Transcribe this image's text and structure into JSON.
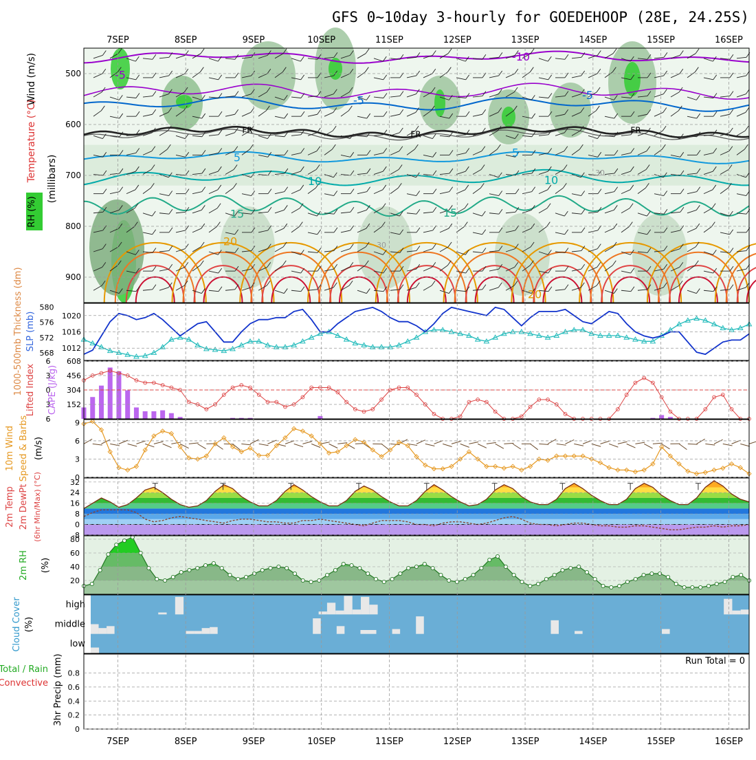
{
  "title": "GFS 0~10day 3-hourly for GOEDEHOOP (28E, 24.25S)",
  "date_labels": [
    "7SEP",
    "8SEP",
    "9SEP",
    "10SEP",
    "11SEP",
    "12SEP",
    "13SEP",
    "14SEP",
    "15SEP",
    "16SEP"
  ],
  "colors": {
    "rh_green": "#33cc33",
    "temp_purple": "#9900cc",
    "temp_blue": "#0066cc",
    "freeze_black": "#222222",
    "temp_teal": "#00aaaa",
    "temp_orange": "#e69900",
    "temp_red": "#dd2222",
    "slp_blue": "#1133cc",
    "thickness_cyan": "#22bbbb",
    "cape_purple": "#bb66ee",
    "li_red": "#dd4444",
    "wind_orange": "#e69922",
    "cloud_blue": "#6aaed6"
  },
  "panel_labels": {
    "upper_wind": "Wind (m/s)",
    "upper_temp": "Temperature (°C)",
    "upper_rh": "RH (%)",
    "upper_p": "(millibars)",
    "thickness": "1000-500mb Thickness (dm)",
    "slp": "SLP (mb)",
    "li": "Lifted Index",
    "cape": "CAPE (J/kg)",
    "wind10": "10m Wind",
    "wind10b": "Speed & Barbs",
    "wind10u": "(m/s)",
    "temp2m": "2m Temp",
    "dew2m": "2m DewPt",
    "temp2m_u": "(6hr Min/Max) (°C)",
    "rh2m": "2m RH",
    "rh2m_u": "(%)",
    "cloud": "Cloud Cover",
    "cloud_u": "(%)",
    "precip_a": "Total / Rain",
    "precip_b": "Convective",
    "precip_c": "3hr Precip (mm)",
    "run_total": "Run Total = 0"
  },
  "cloud_levels": [
    "high",
    "middle",
    "low"
  ],
  "chart_data": [
    {
      "type": "heatmap",
      "name": "upper-air cross-section",
      "ylabel": "(millibars)",
      "yticks": [
        500,
        600,
        700,
        800,
        900
      ],
      "ylim": [
        950,
        450
      ],
      "contour_labels": [
        "-10",
        "-5",
        "FR",
        "5",
        "10",
        "15",
        "20",
        "30"
      ],
      "freezing_level_mb": 615
    },
    {
      "type": "line",
      "name": "Thickness & SLP",
      "x_days": [
        6.5,
        16.3
      ],
      "thickness_ticks": [
        568,
        572,
        576,
        580
      ],
      "slp_ticks": [
        1012,
        1016,
        1020
      ],
      "thickness_dm": [
        571.5,
        570.5,
        569.5,
        568.5,
        568.0,
        567.5,
        567.0,
        567.2,
        568.0,
        569.5,
        571.5,
        572.0,
        571.5,
        570.0,
        569.0,
        568.8,
        568.5,
        569.0,
        570.0,
        571.0,
        571.0,
        570.0,
        569.5,
        569.5,
        570.0,
        571.0,
        572.0,
        573.0,
        573.5,
        572.5,
        571.5,
        570.5,
        570.0,
        569.5,
        569.5,
        569.5,
        570.0,
        571.0,
        572.0,
        573.5,
        574.0,
        574.0,
        573.5,
        573.0,
        572.5,
        571.5,
        571.0,
        572.0,
        573.0,
        573.5,
        573.5,
        573.0,
        572.5,
        572.0,
        572.5,
        573.5,
        574.0,
        574.0,
        573.0,
        572.5,
        572.5,
        572.5,
        572.0,
        571.5,
        571.0,
        571.0,
        572.5,
        574.0,
        575.5,
        576.5,
        577.0,
        576.5,
        575.5,
        574.5,
        574.0,
        574.5,
        575.5
      ],
      "slp_mb": [
        1010.5,
        1011.5,
        1015.0,
        1018.5,
        1020.5,
        1020.0,
        1019.0,
        1019.5,
        1020.5,
        1019.0,
        1017.0,
        1015.0,
        1016.5,
        1018.0,
        1018.5,
        1016.0,
        1013.5,
        1013.5,
        1016.0,
        1018.0,
        1019.0,
        1019.0,
        1019.5,
        1019.5,
        1021.0,
        1021.5,
        1019.0,
        1016.0,
        1016.0,
        1018.0,
        1019.5,
        1021.0,
        1021.5,
        1022.0,
        1021.0,
        1019.5,
        1018.5,
        1018.5,
        1017.5,
        1016.0,
        1018.0,
        1020.5,
        1022.0,
        1021.5,
        1021.0,
        1020.5,
        1020.0,
        1022.0,
        1021.5,
        1019.5,
        1017.5,
        1019.5,
        1021.0,
        1021.0,
        1021.0,
        1021.5,
        1020.0,
        1018.5,
        1018.0,
        1019.5,
        1021.0,
        1020.5,
        1018.0,
        1016.0,
        1015.0,
        1014.5,
        1015.0,
        1016.0,
        1016.0,
        1013.5,
        1011.0,
        1010.5,
        1012.0,
        1013.5,
        1014.0,
        1014.0,
        1015.5
      ]
    },
    {
      "type": "bar",
      "name": "Lifted Index & CAPE",
      "li_ticks": [
        -6,
        -3,
        0,
        3,
        6
      ],
      "cape_ticks": [
        152,
        304,
        456,
        608
      ],
      "cape_jkg": [
        120,
        230,
        350,
        540,
        500,
        300,
        120,
        80,
        80,
        90,
        60,
        20,
        0,
        0,
        0,
        0,
        0,
        10,
        10,
        10,
        0,
        0,
        0,
        0,
        0,
        0,
        0,
        30,
        0,
        0,
        0,
        0,
        0,
        0,
        0,
        0,
        0,
        0,
        0,
        0,
        0,
        0,
        0,
        0,
        0,
        0,
        0,
        0,
        0,
        0,
        0,
        0,
        0,
        0,
        0,
        0,
        0,
        0,
        0,
        0,
        0,
        0,
        0,
        0,
        0,
        10,
        40,
        20,
        0,
        0,
        0,
        0,
        0,
        0,
        0,
        0,
        0
      ],
      "lifted_index": [
        -2.0,
        -3.0,
        -3.5,
        -4.0,
        -3.5,
        -3.0,
        -2.0,
        -1.5,
        -1.5,
        -1.0,
        -0.5,
        0.0,
        2.5,
        3.0,
        4.0,
        3.0,
        1.0,
        -0.5,
        -1.0,
        -0.5,
        1.0,
        2.5,
        2.5,
        3.5,
        3.0,
        1.5,
        -0.5,
        -0.5,
        -0.5,
        0.5,
        2.5,
        4.0,
        4.5,
        4.0,
        2.0,
        0.0,
        -0.5,
        -0.5,
        1.0,
        3.0,
        5.0,
        6.0,
        6.0,
        5.5,
        2.5,
        2.0,
        2.5,
        4.5,
        6.0,
        6.0,
        5.5,
        3.5,
        2.0,
        2.0,
        3.0,
        5.0,
        6.0,
        6.0,
        6.0,
        6.0,
        6.0,
        4.0,
        1.0,
        -1.5,
        -2.5,
        -1.5,
        1.5,
        4.5,
        6.0,
        6.0,
        6.0,
        4.0,
        1.5,
        1.0,
        4.0,
        6.0,
        6.0
      ]
    },
    {
      "type": "line",
      "name": "10m Wind Speed",
      "ylim": [
        0,
        9
      ],
      "yticks": [
        0,
        3,
        6,
        9
      ],
      "wind_ms": [
        8.8,
        9.2,
        7.8,
        4.2,
        1.6,
        1.2,
        1.8,
        4.5,
        6.8,
        7.6,
        7.2,
        5.0,
        3.2,
        3.0,
        3.5,
        5.5,
        6.5,
        5.0,
        4.2,
        4.8,
        3.6,
        3.6,
        5.2,
        6.5,
        8.0,
        7.6,
        6.8,
        5.5,
        4.0,
        4.2,
        5.2,
        6.2,
        5.8,
        4.5,
        3.4,
        4.5,
        5.8,
        5.2,
        3.4,
        2.0,
        1.4,
        1.4,
        1.8,
        3.0,
        4.2,
        3.0,
        1.8,
        1.8,
        1.5,
        1.8,
        1.2,
        1.8,
        3.0,
        2.8,
        3.5,
        3.5,
        3.5,
        3.5,
        3.0,
        2.4,
        1.6,
        1.2,
        1.2,
        0.9,
        1.2,
        2.2,
        5.0,
        3.5,
        2.2,
        1.0,
        0.6,
        0.8,
        1.2,
        1.5,
        2.2,
        1.6,
        0.6
      ]
    },
    {
      "type": "area",
      "name": "2m Temp / DewPt",
      "ylim": [
        -8,
        35
      ],
      "yticks": [
        -8,
        0,
        8,
        16,
        24,
        32
      ],
      "temp_c": [
        12,
        16,
        20,
        17,
        13,
        15,
        20,
        26,
        28,
        24,
        19,
        15,
        13,
        14,
        18,
        25,
        30,
        27,
        21,
        17,
        14,
        14,
        18,
        25,
        30,
        26,
        21,
        17,
        14,
        14,
        18,
        25,
        29,
        26,
        21,
        17,
        14,
        14,
        18,
        25,
        30,
        26,
        21,
        17,
        14,
        15,
        19,
        26,
        30,
        27,
        21,
        17,
        15,
        15,
        19,
        27,
        31,
        27,
        22,
        18,
        15,
        15,
        19,
        27,
        31,
        28,
        22,
        18,
        15,
        15,
        20,
        28,
        33,
        29,
        23,
        19,
        17
      ],
      "dewpt_c": [
        6,
        9,
        11,
        11,
        11,
        11,
        9,
        4,
        2,
        3,
        5,
        6,
        5,
        4,
        3,
        2,
        1,
        3,
        4,
        4,
        3,
        2,
        2,
        1,
        1,
        3,
        3,
        4,
        3,
        2,
        1,
        0,
        -1,
        1,
        3,
        3,
        3,
        2,
        0,
        0,
        -1,
        1,
        2,
        2,
        1,
        0,
        1,
        3,
        5,
        6,
        4,
        1,
        0,
        0,
        -1,
        0,
        1,
        1,
        0,
        -1,
        -1,
        -2,
        -2,
        -1,
        -1,
        -2,
        -3,
        -4,
        -4,
        -3,
        -2,
        -2,
        -1,
        -2,
        -1,
        -1,
        0
      ]
    },
    {
      "type": "area",
      "name": "2m RH",
      "ylim": [
        0,
        85
      ],
      "yticks": [
        20,
        40,
        60,
        80
      ],
      "rh_pct": [
        12,
        15,
        35,
        58,
        72,
        78,
        83,
        60,
        38,
        22,
        20,
        25,
        32,
        35,
        38,
        42,
        45,
        38,
        28,
        22,
        25,
        30,
        35,
        38,
        40,
        38,
        30,
        20,
        18,
        20,
        28,
        35,
        44,
        42,
        38,
        30,
        22,
        18,
        22,
        30,
        38,
        40,
        44,
        38,
        28,
        20,
        18,
        22,
        28,
        38,
        50,
        55,
        40,
        28,
        18,
        12,
        15,
        22,
        28,
        35,
        38,
        40,
        32,
        22,
        12,
        10,
        12,
        18,
        22,
        28,
        30,
        30,
        25,
        15,
        10,
        10,
        10,
        12,
        15,
        18,
        25,
        28,
        20
      ]
    },
    {
      "type": "bar",
      "name": "Cloud Cover",
      "levels": [
        "high",
        "middle",
        "low"
      ],
      "high_pct": [
        0,
        0,
        0,
        0,
        0,
        0,
        0,
        0,
        10,
        0,
        90,
        0,
        0,
        0,
        0,
        0,
        0,
        0,
        0,
        0,
        0,
        0,
        0,
        0,
        0,
        0,
        0,
        15,
        60,
        20,
        95,
        25,
        90,
        50,
        0,
        0,
        0,
        0,
        0,
        0,
        0,
        0,
        0,
        0,
        0,
        0,
        0,
        0,
        0,
        0,
        0,
        0,
        0,
        0,
        0,
        0,
        0,
        0,
        0,
        0,
        0,
        0,
        0,
        0,
        0,
        0,
        0,
        0,
        0,
        0,
        0,
        0,
        0,
        0,
        0,
        80,
        20,
        25
      ],
      "mid_pct": [
        50,
        30,
        40,
        0,
        0,
        0,
        0,
        0,
        0,
        0,
        0,
        0,
        15,
        15,
        30,
        35,
        0,
        0,
        0,
        0,
        0,
        0,
        0,
        0,
        0,
        0,
        0,
        0,
        80,
        0,
        0,
        40,
        0,
        0,
        20,
        20,
        0,
        0,
        25,
        0,
        0,
        90,
        0,
        0,
        0,
        0,
        0,
        0,
        0,
        0,
        0,
        0,
        0,
        0,
        0,
        0,
        0,
        0,
        70,
        0,
        0,
        15,
        0,
        0,
        0,
        0,
        0,
        0,
        0,
        0,
        0,
        0,
        25,
        0,
        0,
        0,
        0,
        0,
        0,
        0,
        0,
        0,
        0
      ],
      "low_pct": [
        30,
        0,
        0,
        0,
        0,
        0,
        0,
        0,
        0,
        0,
        0,
        0,
        0,
        0,
        0,
        0,
        0,
        0,
        0,
        0,
        0,
        0,
        0,
        0,
        0,
        0,
        0,
        0,
        0,
        0,
        0,
        0,
        0,
        0,
        0,
        0,
        0,
        0,
        0,
        0,
        0,
        0,
        0,
        0,
        0,
        0,
        0,
        0,
        0,
        0,
        0,
        0,
        0,
        0,
        0,
        0,
        0,
        0,
        0,
        0,
        0,
        0,
        0,
        0,
        0,
        0,
        0,
        0,
        0,
        0,
        0,
        0,
        0,
        0,
        0,
        0,
        0,
        0,
        0
      ]
    },
    {
      "type": "bar",
      "name": "3hr Precip",
      "ylim": [
        0,
        1
      ],
      "yticks": [
        0,
        0.2,
        0.4,
        0.6,
        0.8
      ],
      "precip_mm": []
    }
  ]
}
